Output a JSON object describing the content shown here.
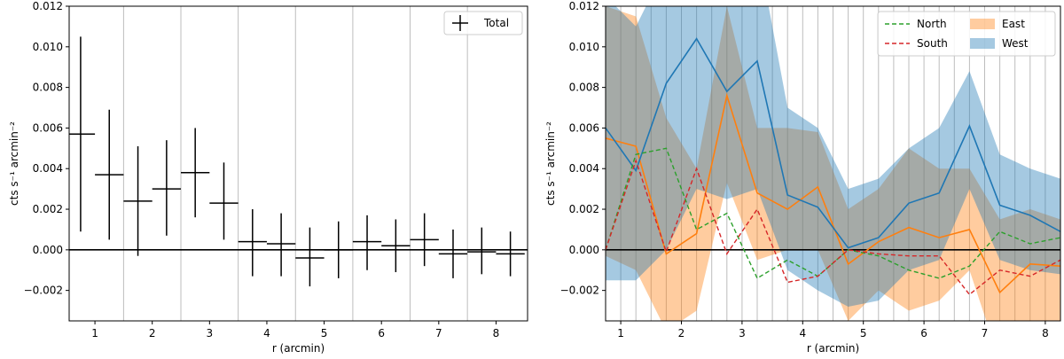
{
  "chart_data": [
    {
      "type": "errorbar",
      "xlabel": "r (arcmin)",
      "ylabel": "cts s⁻¹ arcmin⁻²",
      "xlim": [
        0.55,
        8.55
      ],
      "ylim": [
        -0.0035,
        0.012
      ],
      "xticks": [
        1,
        2,
        3,
        4,
        5,
        6,
        7,
        8
      ],
      "yticks": [
        -0.002,
        0.0,
        0.002,
        0.004,
        0.006,
        0.008,
        0.01,
        0.012
      ],
      "ytick_labels": [
        "−0.002",
        "0.000",
        "0.002",
        "0.004",
        "0.006",
        "0.008",
        "0.010",
        "0.012"
      ],
      "vertical_grid_x": [
        1.5,
        2.5,
        3.5,
        4.5,
        5.5,
        6.5,
        7.5
      ],
      "zero_line": true,
      "legend": {
        "position": "top-right",
        "entries": [
          "Total"
        ]
      },
      "series": [
        {
          "name": "Total",
          "color": "#000000",
          "points": [
            {
              "x": 0.75,
              "xerr": 0.25,
              "y": 0.0057,
              "ylo": 0.0009,
              "yhi": 0.0105
            },
            {
              "x": 1.25,
              "xerr": 0.25,
              "y": 0.0037,
              "ylo": 0.0005,
              "yhi": 0.0069
            },
            {
              "x": 1.75,
              "xerr": 0.25,
              "y": 0.0024,
              "ylo": -0.0003,
              "yhi": 0.0051
            },
            {
              "x": 2.25,
              "xerr": 0.25,
              "y": 0.003,
              "ylo": 0.0007,
              "yhi": 0.0054
            },
            {
              "x": 2.75,
              "xerr": 0.25,
              "y": 0.0038,
              "ylo": 0.0016,
              "yhi": 0.006
            },
            {
              "x": 3.25,
              "xerr": 0.25,
              "y": 0.0023,
              "ylo": 0.0005,
              "yhi": 0.0043
            },
            {
              "x": 3.75,
              "xerr": 0.25,
              "y": 0.0004,
              "ylo": -0.0013,
              "yhi": 0.002
            },
            {
              "x": 4.25,
              "xerr": 0.25,
              "y": 0.0003,
              "ylo": -0.0013,
              "yhi": 0.0018
            },
            {
              "x": 4.75,
              "xerr": 0.25,
              "y": -0.0004,
              "ylo": -0.0018,
              "yhi": 0.0011
            },
            {
              "x": 5.25,
              "xerr": 0.25,
              "y": 0.0,
              "ylo": -0.0014,
              "yhi": 0.0014
            },
            {
              "x": 5.75,
              "xerr": 0.25,
              "y": 0.0004,
              "ylo": -0.001,
              "yhi": 0.0017
            },
            {
              "x": 6.25,
              "xerr": 0.25,
              "y": 0.0002,
              "ylo": -0.0011,
              "yhi": 0.0015
            },
            {
              "x": 6.75,
              "xerr": 0.25,
              "y": 0.0005,
              "ylo": -0.0008,
              "yhi": 0.0018
            },
            {
              "x": 7.25,
              "xerr": 0.25,
              "y": -0.0002,
              "ylo": -0.0014,
              "yhi": 0.001
            },
            {
              "x": 7.75,
              "xerr": 0.25,
              "y": -0.0001,
              "ylo": -0.0012,
              "yhi": 0.0011
            },
            {
              "x": 8.25,
              "xerr": 0.25,
              "y": -0.0002,
              "ylo": -0.0013,
              "yhi": 0.0009
            }
          ]
        }
      ]
    },
    {
      "type": "line",
      "xlabel": "r (arcmin)",
      "ylabel": "cts s⁻¹ arcmin⁻²",
      "xlim": [
        0.75,
        8.25
      ],
      "ylim": [
        -0.0035,
        0.012
      ],
      "xticks": [
        1,
        2,
        3,
        4,
        5,
        6,
        7,
        8
      ],
      "yticks": [
        -0.002,
        0.0,
        0.002,
        0.004,
        0.006,
        0.008,
        0.01,
        0.012
      ],
      "ytick_labels": [
        "−0.002",
        "0.000",
        "0.002",
        "0.004",
        "0.006",
        "0.008",
        "0.010",
        "0.012"
      ],
      "vertical_grid_x": [
        1.0,
        1.25,
        1.5,
        1.75,
        2.0,
        2.25,
        2.5,
        2.75,
        3.0,
        3.25,
        3.5,
        3.75,
        4.0,
        4.25,
        4.5,
        4.75,
        5.0,
        5.25,
        5.5,
        5.75,
        6.0,
        6.25,
        6.5,
        6.75,
        7.0,
        7.25,
        7.5,
        7.75,
        8.0
      ],
      "zero_line": true,
      "legend": {
        "position": "top-right",
        "entries": [
          "North",
          "South",
          "East",
          "West"
        ]
      },
      "x": [
        0.75,
        1.25,
        1.75,
        2.25,
        2.75,
        3.25,
        3.75,
        4.25,
        4.75,
        5.25,
        5.75,
        6.25,
        6.75,
        7.25,
        7.75,
        8.25
      ],
      "bands": [
        {
          "name": "East",
          "color": "#ff7f0e",
          "line": [
            0.0055,
            0.0051,
            -0.0002,
            0.0008,
            0.0076,
            0.0028,
            0.002,
            0.0031,
            -0.0007,
            0.0004,
            0.0011,
            0.0006,
            0.001,
            -0.0021,
            -0.0007,
            -0.0008
          ],
          "lo": [
            -0.0003,
            -0.001,
            -0.004,
            -0.003,
            0.0033,
            -0.0005,
            0.0,
            0.0,
            -0.0035,
            -0.002,
            -0.003,
            -0.0025,
            -0.001,
            -0.0055,
            -0.004,
            -0.0035
          ],
          "hi": [
            0.012,
            0.0115,
            0.0065,
            0.004,
            0.012,
            0.006,
            0.006,
            0.0058,
            0.002,
            0.003,
            0.005,
            0.004,
            0.004,
            0.0015,
            0.002,
            0.0015
          ]
        },
        {
          "name": "West",
          "color": "#1f77b4",
          "line": [
            0.006,
            0.0039,
            0.0082,
            0.0104,
            0.0078,
            0.0093,
            0.0027,
            0.0021,
            0.0001,
            0.0006,
            0.0023,
            0.0028,
            0.0061,
            0.0022,
            0.0017,
            0.0009
          ],
          "lo": [
            -0.0015,
            -0.0015,
            0.0,
            0.003,
            0.0025,
            0.003,
            -0.001,
            -0.002,
            -0.0028,
            -0.0025,
            -0.001,
            -0.0005,
            0.003,
            -0.0005,
            -0.001,
            -0.0012
          ],
          "hi": [
            0.0125,
            0.011,
            0.014,
            0.015,
            0.014,
            0.015,
            0.007,
            0.006,
            0.003,
            0.0035,
            0.005,
            0.006,
            0.0088,
            0.0047,
            0.004,
            0.0035
          ]
        }
      ],
      "series": [
        {
          "name": "North",
          "color": "#2ca02c",
          "dash": true,
          "values": [
            0.0,
            0.0047,
            0.005,
            0.001,
            0.0018,
            -0.0014,
            -0.0005,
            -0.0013,
            0.0,
            -0.0003,
            -0.001,
            -0.0014,
            -0.0008,
            0.0009,
            0.0003,
            0.0006
          ]
        },
        {
          "name": "South",
          "color": "#d62728",
          "dash": true,
          "values": [
            0.0,
            0.0044,
            -0.0001,
            0.004,
            -0.0002,
            0.002,
            -0.0016,
            -0.0013,
            0.0,
            -0.0002,
            -0.0003,
            -0.0003,
            -0.0022,
            -0.001,
            -0.0013,
            -0.0005
          ]
        }
      ]
    }
  ]
}
